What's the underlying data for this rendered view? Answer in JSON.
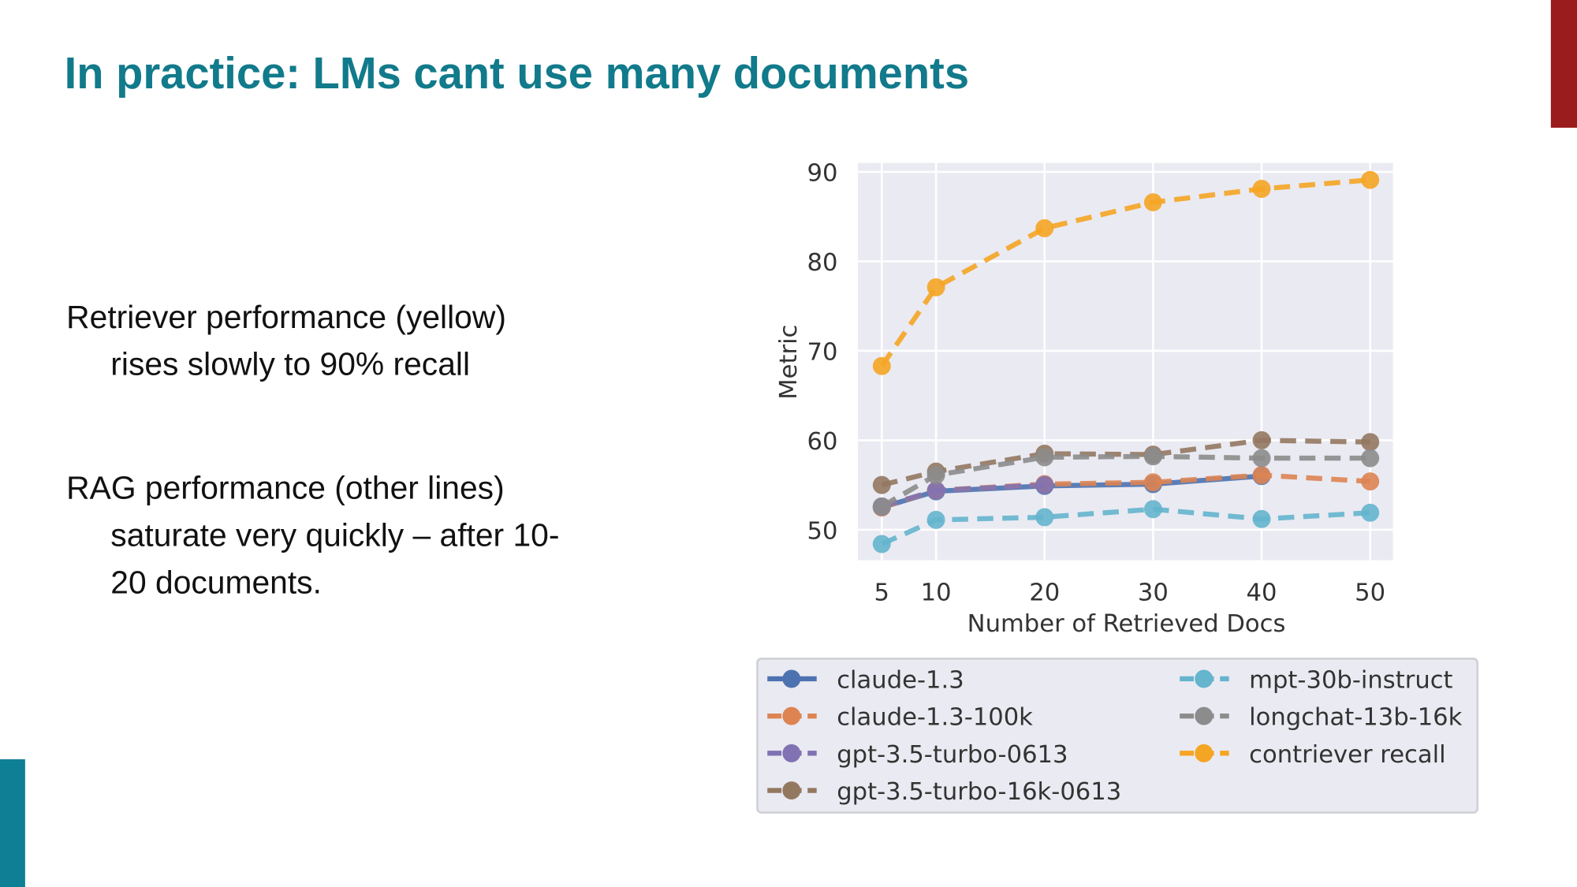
{
  "slide": {
    "title": "In practice: LMs cant use many documents",
    "bullets": [
      [
        "Retriever performance (yellow)",
        "rises slowly to 90% recall"
      ],
      [
        "RAG performance (other lines)",
        "saturate very quickly – after 10-",
        "20 documents."
      ]
    ]
  },
  "chart_data": {
    "type": "line",
    "x_label": "Number of Retrieved Docs",
    "y_label": "Metric",
    "x": [
      5,
      10,
      20,
      30,
      40,
      50
    ],
    "xlim": [
      2.8,
      52.1
    ],
    "ylim": [
      46.6,
      91.0
    ],
    "xticks": [
      5,
      10,
      20,
      30,
      40,
      50
    ],
    "yticks": [
      50,
      60,
      70,
      80,
      90
    ],
    "grid": true,
    "legend": "below",
    "background": "#eaeaf2",
    "series": [
      {
        "name": "claude-1.3",
        "color": "#4c72b0",
        "style": "solid",
        "values": [
          52.5,
          54.3,
          54.9,
          55.1,
          56.0,
          null
        ]
      },
      {
        "name": "claude-1.3-100k",
        "color": "#dd8452",
        "style": "dashed",
        "values": [
          52.5,
          54.4,
          55.1,
          55.3,
          56.1,
          55.4
        ]
      },
      {
        "name": "gpt-3.5-turbo-0613",
        "color": "#8172b3",
        "style": "dashed",
        "values": [
          52.6,
          54.4,
          55.0,
          null,
          null,
          null
        ]
      },
      {
        "name": "gpt-3.5-turbo-16k-0613",
        "color": "#937860",
        "style": "dashed",
        "values": [
          55.0,
          56.5,
          58.5,
          58.4,
          60.0,
          59.8
        ]
      },
      {
        "name": "mpt-30b-instruct",
        "color": "#64b5cd",
        "style": "dashed",
        "values": [
          48.4,
          51.1,
          51.4,
          52.3,
          51.2,
          51.9
        ]
      },
      {
        "name": "longchat-13b-16k",
        "color": "#8c8c8c",
        "style": "dashed",
        "values": [
          52.6,
          56.1,
          58.1,
          58.2,
          58.0,
          58.0
        ]
      },
      {
        "name": "contriever recall",
        "color": "#f5a524",
        "style": "dashed",
        "values": [
          68.3,
          77.1,
          83.7,
          86.6,
          88.1,
          89.1
        ]
      }
    ]
  }
}
